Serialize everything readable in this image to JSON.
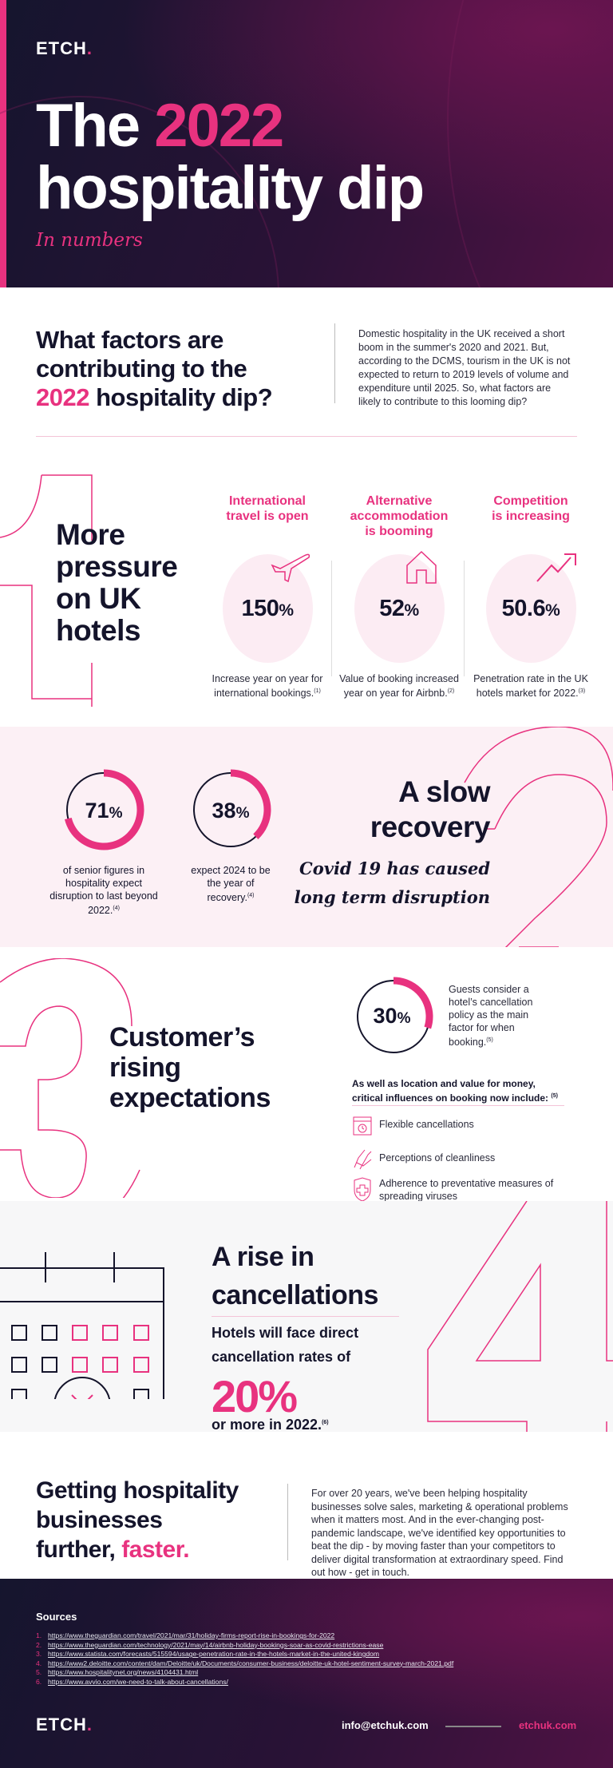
{
  "hero": {
    "logo": "ETCH",
    "title_pre": "The ",
    "title_year": "2022",
    "title_line2": "hospitality dip",
    "subtitle": "In numbers"
  },
  "intro": {
    "heading_line1": "What factors are",
    "heading_line2": "contributing to the",
    "heading_year": "2022",
    "heading_rest": " hospitality dip?",
    "paragraph": "Domestic hospitality in the UK received a short boom in the summer's 2020 and 2021. But, according to the DCMS, tourism in the UK is not expected to return to 2019 levels of volume and expenditure until 2025. So, what factors are likely to contribute to this looming dip?"
  },
  "section1": {
    "number": "1",
    "title": [
      "More",
      "pressure",
      "on UK",
      "hotels"
    ],
    "columns": [
      {
        "heading": [
          "International",
          "travel is open"
        ],
        "icon": "airplane-icon",
        "value": "150",
        "unit": "%",
        "desc": "Increase year on year for international bookings.",
        "ref": "(1)"
      },
      {
        "heading": [
          "Alternative",
          "accommodation",
          "is booming"
        ],
        "icon": "house-icon",
        "value": "52",
        "unit": "%",
        "desc": "Value of booking increased year on year for Airbnb.",
        "ref": "(2)"
      },
      {
        "heading": [
          "Competition",
          "is increasing"
        ],
        "icon": "trend-up-icon",
        "value": "50.6",
        "unit": "%",
        "desc": "Penetration rate in the UK hotels market for 2022.",
        "ref": "(3)"
      }
    ]
  },
  "section2": {
    "number": "2",
    "title": [
      "A slow",
      "recovery"
    ],
    "subtitle": [
      "Covid 19 has caused",
      "long term disruption"
    ],
    "stats": [
      {
        "value": "71",
        "unit": "%",
        "percent": 71,
        "desc": "of senior figures in hospitality expect disruption to last beyond 2022.",
        "ref": "(4)"
      },
      {
        "value": "38",
        "unit": "%",
        "percent": 38,
        "desc": "expect 2024 to be the year of recovery.",
        "ref": "(4)"
      }
    ]
  },
  "section3": {
    "number": "3",
    "title": [
      "Customer’s",
      "rising",
      "expectations"
    ],
    "stat": {
      "value": "30",
      "unit": "%",
      "percent": 30,
      "desc": "Guests consider a hotel’s cancellation policy as the main factor for when booking.",
      "ref": "(5)"
    },
    "lead": "As well as location and value for money, critical influences on booking now include:",
    "lead_ref": "(5)",
    "items": [
      {
        "icon": "calendar-clock-icon",
        "label": "Flexible cancellations"
      },
      {
        "icon": "washing-hands-icon",
        "label": "Perceptions of cleanliness"
      },
      {
        "icon": "shield-cross-icon",
        "label": "Adherence to preventative measures of spreading viruses"
      }
    ]
  },
  "section4": {
    "number": "4",
    "title": [
      "A rise in",
      "cancellations"
    ],
    "lead": [
      "Hotels will face direct",
      "cancellation rates of"
    ],
    "value": "20%",
    "tail": "or more in 2022.",
    "ref": "(6)"
  },
  "cta": {
    "heading_line1": "Getting hospitality",
    "heading_line2": "businesses",
    "heading_line3": "further, ",
    "heading_accent": "faster.",
    "paragraph": "For over 20 years, we've been helping hospitality businesses solve sales, marketing & operational problems when it matters most. And in the ever-changing post-pandemic landscape, we've identified key opportunities to beat the dip - by moving faster than your competitors to deliver digital transformation at extraordinary speed. Find out how - get in touch."
  },
  "footer": {
    "sources_title": "Sources",
    "sources": [
      "https://www.theguardian.com/travel/2021/mar/31/holiday-firms-report-rise-in-bookings-for-2022",
      "https://www.theguardian.com/technology/2021/may/14/airbnb-holiday-bookings-soar-as-covid-restrictions-ease",
      "https://www.statista.com/forecasts/515594/usage-penetration-rate-in-the-hotels-market-in-the-united-kingdom",
      "https://www2.deloitte.com/content/dam/Deloitte/uk/Documents/consumer-business/deloitte-uk-hotel-sentiment-survey-march-2021.pdf",
      "https://www.hospitalitynet.org/news/4104431.html",
      "https://www.avvio.com/we-need-to-talk-about-cancellations/"
    ],
    "logo": "ETCH",
    "email": "info@etchuk.com",
    "website": "etchuk.com"
  },
  "colors": {
    "accent": "#e8327f",
    "dark": "#14142b",
    "pink_bg": "#fcf0f5"
  }
}
